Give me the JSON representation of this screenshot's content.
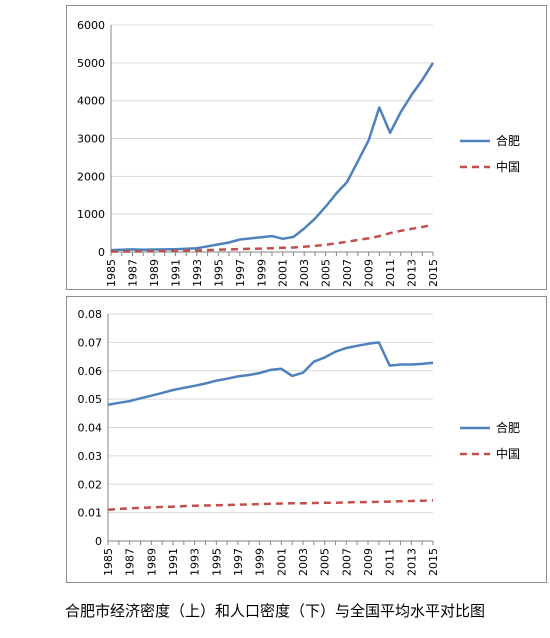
{
  "caption": "合肥市经济密度（上）和人口密度（下）与全国平均水平对比图",
  "colors": {
    "hefei": "#4f81bd",
    "china": "#c0504d",
    "grid": "#d9d9d9",
    "axis": "#868686"
  },
  "chart_data": [
    {
      "type": "line",
      "ylim": [
        0,
        6000
      ],
      "yticks": [
        "0",
        "1000",
        "2000",
        "3000",
        "4000",
        "5000",
        "6000"
      ],
      "x": [
        1985,
        1986,
        1987,
        1988,
        1989,
        1990,
        1991,
        1992,
        1993,
        1994,
        1995,
        1996,
        1997,
        1998,
        1999,
        2000,
        2001,
        2002,
        2003,
        2004,
        2005,
        2006,
        2007,
        2008,
        2009,
        2010,
        2011,
        2012,
        2013,
        2014,
        2015
      ],
      "xtick_labels": [
        "1985",
        "1987",
        "1989",
        "1991",
        "1993",
        "1995",
        "1997",
        "1999",
        "2001",
        "2003",
        "2005",
        "2007",
        "2009",
        "2011",
        "2013",
        "2015"
      ],
      "grid": "horizontal",
      "legend_position": "right",
      "series": [
        {
          "name": "合肥",
          "style": "solid",
          "values": [
            50,
            60,
            70,
            60,
            65,
            70,
            75,
            85,
            100,
            150,
            200,
            250,
            330,
            360,
            390,
            420,
            350,
            400,
            620,
            880,
            1200,
            1550,
            1850,
            2400,
            2950,
            3820,
            3150,
            3700,
            4150,
            4550,
            5000
          ]
        },
        {
          "name": "中国",
          "style": "dashed",
          "values": [
            10,
            12,
            14,
            17,
            20,
            25,
            30,
            35,
            40,
            50,
            60,
            70,
            80,
            85,
            90,
            100,
            110,
            120,
            140,
            160,
            190,
            230,
            270,
            320,
            360,
            420,
            500,
            560,
            610,
            660,
            720
          ]
        }
      ]
    },
    {
      "type": "line",
      "ylim": [
        0,
        0.08
      ],
      "yticks": [
        "0",
        "0.01",
        "0.02",
        "0.03",
        "0.04",
        "0.05",
        "0.06",
        "0.07",
        "0.08"
      ],
      "x": [
        1985,
        1986,
        1987,
        1988,
        1989,
        1990,
        1991,
        1992,
        1993,
        1994,
        1995,
        1996,
        1997,
        1998,
        1999,
        2000,
        2001,
        2002,
        2003,
        2004,
        2005,
        2006,
        2007,
        2008,
        2009,
        2010,
        2011,
        2012,
        2013,
        2014,
        2015
      ],
      "xtick_labels": [
        "1985",
        "1987",
        "1989",
        "1991",
        "1993",
        "1995",
        "1997",
        "1999",
        "2001",
        "2003",
        "2005",
        "2007",
        "2009",
        "2011",
        "2013",
        "2015"
      ],
      "grid": "horizontal",
      "legend_position": "right",
      "series": [
        {
          "name": "合肥",
          "style": "solid",
          "values": [
            0.048,
            0.0487,
            0.0493,
            0.0503,
            0.0512,
            0.0522,
            0.0532,
            0.054,
            0.0547,
            0.0555,
            0.0565,
            0.0572,
            0.058,
            0.0585,
            0.0592,
            0.0603,
            0.0607,
            0.0582,
            0.0593,
            0.0632,
            0.0647,
            0.0667,
            0.068,
            0.0688,
            0.0695,
            0.07,
            0.0618,
            0.0622,
            0.0622,
            0.0624,
            0.0628
          ]
        },
        {
          "name": "中国",
          "style": "dashed",
          "values": [
            0.011,
            0.0113,
            0.0115,
            0.0117,
            0.0118,
            0.012,
            0.0121,
            0.0123,
            0.0124,
            0.0125,
            0.0126,
            0.0127,
            0.0128,
            0.0129,
            0.013,
            0.0131,
            0.0132,
            0.0133,
            0.0133,
            0.0134,
            0.0135,
            0.0135,
            0.0136,
            0.0137,
            0.0137,
            0.0138,
            0.0139,
            0.014,
            0.0141,
            0.0142,
            0.0143
          ]
        }
      ]
    }
  ]
}
